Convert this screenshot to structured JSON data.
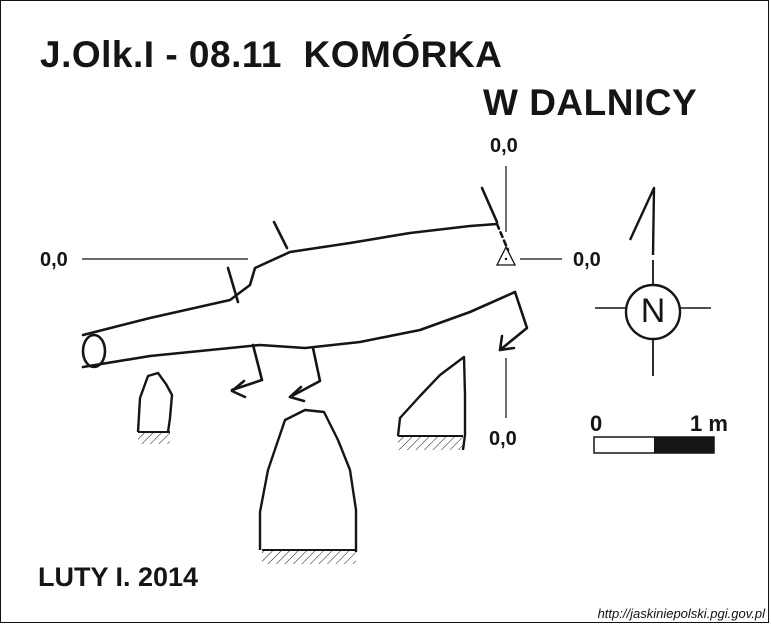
{
  "map": {
    "title_line1": "J.Olk.I - 08.11  KOMÓRKA",
    "title_line2": "W DALNICY",
    "coord_top": "0,0",
    "coord_left": "0,0",
    "coord_right": "0,0",
    "coord_bottom": "0,0",
    "north_label": "N",
    "scale": {
      "start": "0",
      "end": "1 m"
    },
    "date": "LUTY I. 2014",
    "source": "http://jaskiniepolski.pgi.gov.pl"
  }
}
